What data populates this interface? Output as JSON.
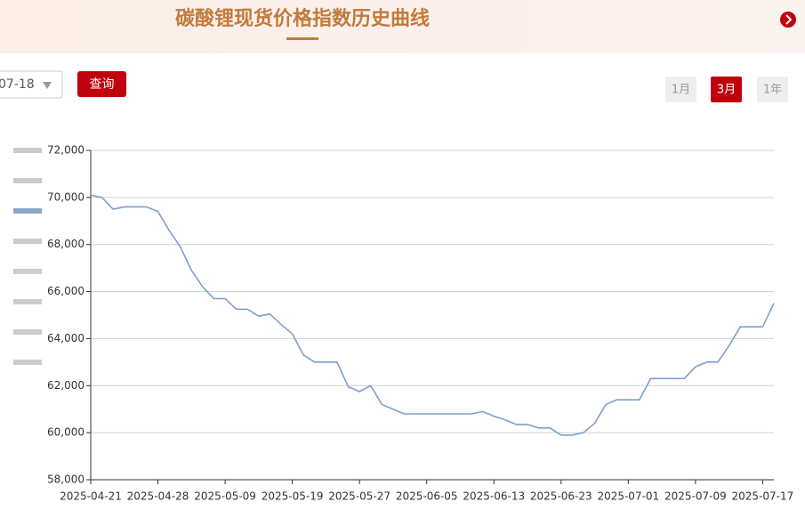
{
  "header": {
    "title": "碳酸锂现货价格指数历史曲线"
  },
  "controls": {
    "date": "07-18",
    "query": "查询",
    "periods": [
      "1月",
      "3月",
      "1年"
    ]
  },
  "chart_data": {
    "type": "line",
    "color": "#7d9fcc",
    "grid": true,
    "categories": [
      "2025-04-21",
      null,
      null,
      null,
      null,
      null,
      "2025-04-28",
      null,
      null,
      null,
      null,
      null,
      "2025-05-09",
      null,
      null,
      null,
      null,
      null,
      "2025-05-19",
      null,
      null,
      null,
      null,
      null,
      "2025-05-27",
      null,
      null,
      null,
      null,
      null,
      "2025-06-05",
      null,
      null,
      null,
      null,
      null,
      "2025-06-13",
      null,
      null,
      null,
      null,
      null,
      "2025-06-23",
      null,
      null,
      null,
      null,
      null,
      "2025-07-01",
      null,
      null,
      null,
      null,
      null,
      "2025-07-09",
      null,
      null,
      null,
      null,
      null,
      "2025-07-17",
      null
    ],
    "values": [
      70100,
      70000,
      69500,
      69600,
      69600,
      69600,
      69400,
      68600,
      67900,
      66900,
      66200,
      65700,
      65700,
      65250,
      65250,
      64950,
      65050,
      64600,
      64200,
      63300,
      63000,
      63000,
      63000,
      61950,
      61750,
      62000,
      61200,
      61000,
      60800,
      60800,
      60800,
      60800,
      60800,
      60800,
      60800,
      60900,
      60700,
      60550,
      60350,
      60350,
      60200,
      60200,
      59900,
      59900,
      60000,
      60400,
      61200,
      61400,
      61400,
      61400,
      62300,
      62300,
      62300,
      62300,
      62800,
      63000,
      63000,
      63700,
      64500,
      64500,
      64500,
      65500
    ],
    "ylim": [
      58000,
      72000
    ],
    "yticks": [
      {
        "value": 58000,
        "label": "58,000"
      },
      {
        "value": 60000,
        "label": "60,000"
      },
      {
        "value": 62000,
        "label": "62,000"
      },
      {
        "value": 64000,
        "label": "64,000"
      },
      {
        "value": 66000,
        "label": "66,000"
      },
      {
        "value": 68000,
        "label": "68,000"
      },
      {
        "value": 70000,
        "label": "70,000"
      },
      {
        "value": 72000,
        "label": "72,000"
      }
    ]
  }
}
